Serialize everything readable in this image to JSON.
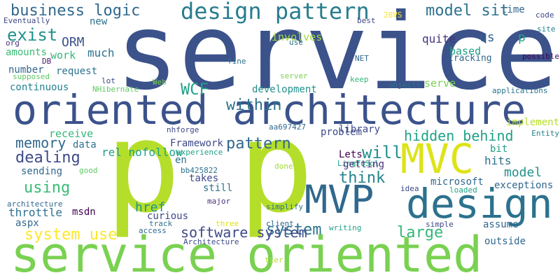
{
  "cloud": {
    "words": [
      {
        "text": "service",
        "color": "#3b528b"
      },
      {
        "text": "oriented architecture",
        "color": "#3b528b"
      },
      {
        "text": "service oriented",
        "color": "#7ad151"
      },
      {
        "text": "p",
        "color": "#b5de2b"
      },
      {
        "text": "p",
        "color": "#b5de2b"
      },
      {
        "text": "design",
        "color": "#2c728e"
      },
      {
        "text": "MVP",
        "color": "#31688e"
      },
      {
        "text": "MVC",
        "color": "#dde318"
      },
      {
        "text": "design pattern",
        "color": "#287d8e"
      },
      {
        "text": "business logic",
        "color": "#31688e"
      },
      {
        "text": "model sit",
        "color": "#2c728e"
      },
      {
        "text": "exist",
        "color": "#21918c"
      },
      {
        "text": "ORM",
        "color": "#3b528b"
      },
      {
        "text": "work",
        "color": "#35b779"
      },
      {
        "text": "much",
        "color": "#2c728e"
      },
      {
        "text": "amounts",
        "color": "#3bbb75"
      },
      {
        "text": "number",
        "color": "#31688e"
      },
      {
        "text": "request",
        "color": "#2c728e"
      },
      {
        "text": "continuous",
        "color": "#26828e"
      },
      {
        "text": "WCF",
        "color": "#1fa187"
      },
      {
        "text": "new",
        "color": "#2c728e"
      },
      {
        "text": "Eventually",
        "color": "#3e4989"
      },
      {
        "text": "org",
        "color": "#46337e"
      },
      {
        "text": "DB",
        "color": "#481b6d"
      },
      {
        "text": "supposed",
        "color": "#5ec962"
      },
      {
        "text": "lot",
        "color": "#3e4989"
      },
      {
        "text": "NHibernate",
        "color": "#5ec962"
      },
      {
        "text": "Web",
        "color": "#7ad151"
      },
      {
        "text": "fine",
        "color": "#2c728e"
      },
      {
        "text": "2BVS",
        "color": "#fde725"
      },
      {
        "text": "best",
        "color": "#3e4989"
      },
      {
        "text": "use",
        "color": "#2c728e"
      },
      {
        "text": "us",
        "color": "#31688e"
      },
      {
        "text": "time",
        "color": "#31688e"
      },
      {
        "text": "code",
        "color": "#3e4989"
      },
      {
        "text": "site",
        "color": "#26828e"
      },
      {
        "text": "p",
        "color": "#1fa187"
      },
      {
        "text": "quite",
        "color": "#46337e"
      },
      {
        "text": "based",
        "color": "#1fa187"
      },
      {
        "text": "tracking",
        "color": "#31688e"
      },
      {
        "text": "possible",
        "color": "#440154"
      },
      {
        "text": "applications",
        "color": "#2c728e"
      },
      {
        "text": "involves",
        "color": "#a0da39"
      },
      {
        "text": "server",
        "color": "#7ad151"
      },
      {
        "text": "NET",
        "color": "#31688e"
      },
      {
        "text": "keep",
        "color": "#35b779"
      },
      {
        "text": "objects",
        "color": "#2c728e"
      },
      {
        "text": "serve",
        "color": "#7ad151"
      },
      {
        "text": "development",
        "color": "#21918c"
      },
      {
        "text": "within",
        "color": "#2c728e"
      },
      {
        "text": "pattern",
        "color": "#31688e"
      },
      {
        "text": "hidden behind",
        "color": "#1fa187"
      },
      {
        "text": "library",
        "color": "#3e4989"
      },
      {
        "text": "will",
        "color": "#21918c"
      },
      {
        "text": "think",
        "color": "#26828e"
      },
      {
        "text": "Lets",
        "color": "#440154"
      },
      {
        "text": "LinqToSql",
        "color": "#1fa187"
      },
      {
        "text": "getting",
        "color": "#46337e"
      },
      {
        "text": "bit",
        "color": "#1fa187"
      },
      {
        "text": "implement",
        "color": "#b5de2b"
      },
      {
        "text": "Entity",
        "color": "#26828e"
      },
      {
        "text": "hits",
        "color": "#2c728e"
      },
      {
        "text": "model",
        "color": "#21918c"
      },
      {
        "text": "microsoft",
        "color": "#31688e"
      },
      {
        "text": "exceptions",
        "color": "#31688e"
      },
      {
        "text": "loaded",
        "color": "#1fa187"
      },
      {
        "text": "idea",
        "color": "#3e4989"
      },
      {
        "text": "assume",
        "color": "#31688e"
      },
      {
        "text": "large",
        "color": "#35b779"
      },
      {
        "text": "outside",
        "color": "#31688e"
      },
      {
        "text": "simple",
        "color": "#3e4989"
      },
      {
        "text": "writing",
        "color": "#1fa187"
      },
      {
        "text": "system",
        "color": "#2c728e"
      },
      {
        "text": "client",
        "color": "#31688e"
      },
      {
        "text": "simplify",
        "color": "#2c728e"
      },
      {
        "text": "done",
        "color": "#a0da39"
      },
      {
        "text": "tier",
        "color": "#b5de2b"
      },
      {
        "text": "problem",
        "color": "#3e4989"
      },
      {
        "text": "aa697427",
        "color": "#31688e"
      },
      {
        "text": "memory",
        "color": "#31688e"
      },
      {
        "text": "receive",
        "color": "#35b779"
      },
      {
        "text": "data",
        "color": "#2c728e"
      },
      {
        "text": "dealing",
        "color": "#3e4989"
      },
      {
        "text": "sending",
        "color": "#31688e"
      },
      {
        "text": "good",
        "color": "#5ec962"
      },
      {
        "text": "using",
        "color": "#3bbb75"
      },
      {
        "text": "architecture",
        "color": "#31688e"
      },
      {
        "text": "throttle",
        "color": "#2c728e"
      },
      {
        "text": "msdn",
        "color": "#440154"
      },
      {
        "text": "aspx",
        "color": "#31688e"
      },
      {
        "text": "system use",
        "color": "#fde725"
      },
      {
        "text": "nhforge",
        "color": "#3e4989"
      },
      {
        "text": "Framework",
        "color": "#3e4989"
      },
      {
        "text": "experience",
        "color": "#1fa187"
      },
      {
        "text": "en",
        "color": "#2c728e"
      },
      {
        "text": "bb425822",
        "color": "#2c728e"
      },
      {
        "text": "rel nofollow",
        "color": "#1fa187"
      },
      {
        "text": "href",
        "color": "#21918c"
      },
      {
        "text": "takes",
        "color": "#3e4989"
      },
      {
        "text": "still",
        "color": "#2c728e"
      },
      {
        "text": "major",
        "color": "#46337e"
      },
      {
        "text": "curious",
        "color": "#3e4989"
      },
      {
        "text": "track",
        "color": "#2c728e"
      },
      {
        "text": "access",
        "color": "#31688e"
      },
      {
        "text": "three",
        "color": "#dde318"
      },
      {
        "text": "software system",
        "color": "#3e4989"
      },
      {
        "text": "Architecture",
        "color": "#3e4989"
      }
    ]
  }
}
